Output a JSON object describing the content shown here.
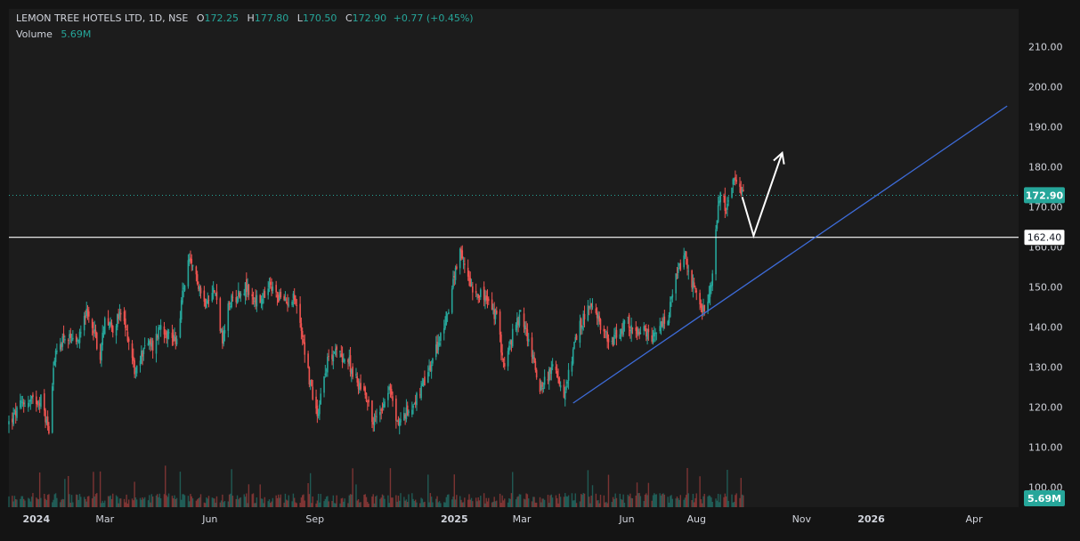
{
  "header": {
    "symbol": "LEMON TREE HOTELS LTD, 1D, NSE",
    "o_label": "O",
    "o_value": "172.25",
    "h_label": "H",
    "h_value": "177.80",
    "l_label": "L",
    "l_value": "170.50",
    "c_label": "C",
    "c_value": "172.90",
    "change": "+0.77 (+0.45%)",
    "volume_label": "Volume",
    "volume_value": "5.69M"
  },
  "colors": {
    "background": "#1c1c1c",
    "up": "#26a69a",
    "down": "#ef5350",
    "trendline": "#3d6bd8",
    "level_line": "#ffffff",
    "arrow": "#ffffff",
    "text": "#d1d4dc",
    "price_badge": "#26a69a"
  },
  "annotations": {
    "price_badge": "172.90",
    "level_label": "162.40",
    "volume_badge": "5.69M"
  },
  "chart_data": {
    "type": "candlestick",
    "title": "LEMON TREE HOTELS LTD, 1D, NSE",
    "ylim": [
      95,
      215
    ],
    "yticks": [
      "210.00",
      "200.00",
      "190.00",
      "180.00",
      "170.00",
      "160.00",
      "150.00",
      "140.00",
      "130.00",
      "120.00",
      "110.00",
      "100.00"
    ],
    "ytick_values": [
      210,
      200,
      190,
      180,
      170,
      160,
      150,
      140,
      130,
      120,
      110,
      100
    ],
    "xlim": [
      "2023-12-08",
      "2026-05-10"
    ],
    "xticks": [
      {
        "label": "2024",
        "date": "2024-01-01"
      },
      {
        "label": "Mar",
        "date": "2024-03-01"
      },
      {
        "label": "Jun",
        "date": "2024-06-01"
      },
      {
        "label": "Sep",
        "date": "2024-09-01"
      },
      {
        "label": "2025",
        "date": "2025-01-01"
      },
      {
        "label": "Mar",
        "date": "2025-03-01"
      },
      {
        "label": "Jun",
        "date": "2025-06-01"
      },
      {
        "label": "Aug",
        "date": "2025-08-01"
      },
      {
        "label": "Nov",
        "date": "2025-11-01"
      },
      {
        "label": "2026",
        "date": "2026-01-01"
      },
      {
        "label": "Apr",
        "date": "2026-04-01"
      }
    ],
    "last_close": 172.9,
    "horizontal_level": 162.4,
    "trendline": [
      {
        "date": "2025-04-15",
        "value": 121.0
      },
      {
        "date": "2026-04-30",
        "value": 195.2
      }
    ],
    "projection_path": [
      {
        "date": "2025-09-10",
        "value": 172.5
      },
      {
        "date": "2025-09-20",
        "value": 162.8
      },
      {
        "date": "2025-10-15",
        "value": 183.5
      }
    ],
    "price_path": [
      [
        "2023-12-08",
        116
      ],
      [
        "2023-12-20",
        121
      ],
      [
        "2024-01-05",
        122
      ],
      [
        "2024-01-12",
        114
      ],
      [
        "2024-01-16",
        131
      ],
      [
        "2024-01-25",
        138
      ],
      [
        "2024-02-05",
        135
      ],
      [
        "2024-02-12",
        144
      ],
      [
        "2024-02-20",
        140
      ],
      [
        "2024-02-26",
        132
      ],
      [
        "2024-03-01",
        143
      ],
      [
        "2024-03-08",
        140
      ],
      [
        "2024-03-15",
        143
      ],
      [
        "2024-03-22",
        137
      ],
      [
        "2024-03-28",
        128
      ],
      [
        "2024-04-05",
        136
      ],
      [
        "2024-04-12",
        135
      ],
      [
        "2024-04-19",
        141
      ],
      [
        "2024-04-26",
        138
      ],
      [
        "2024-05-03",
        137
      ],
      [
        "2024-05-08",
        148
      ],
      [
        "2024-05-13",
        156
      ],
      [
        "2024-05-20",
        153
      ],
      [
        "2024-05-27",
        146
      ],
      [
        "2024-06-03",
        150
      ],
      [
        "2024-06-07",
        147
      ],
      [
        "2024-06-12",
        136
      ],
      [
        "2024-06-18",
        146
      ],
      [
        "2024-06-25",
        148
      ],
      [
        "2024-07-02",
        150
      ],
      [
        "2024-07-09",
        147
      ],
      [
        "2024-07-16",
        146
      ],
      [
        "2024-07-23",
        150
      ],
      [
        "2024-07-30",
        148
      ],
      [
        "2024-08-06",
        146
      ],
      [
        "2024-08-13",
        148
      ],
      [
        "2024-08-20",
        140
      ],
      [
        "2024-08-27",
        127
      ],
      [
        "2024-09-03",
        118
      ],
      [
        "2024-09-10",
        130
      ],
      [
        "2024-09-17",
        134
      ],
      [
        "2024-09-24",
        133
      ],
      [
        "2024-10-01",
        131
      ],
      [
        "2024-10-08",
        126
      ],
      [
        "2024-10-15",
        124
      ],
      [
        "2024-10-22",
        116
      ],
      [
        "2024-10-29",
        120
      ],
      [
        "2024-11-05",
        125
      ],
      [
        "2024-11-12",
        116
      ],
      [
        "2024-11-19",
        118
      ],
      [
        "2024-11-26",
        121
      ],
      [
        "2024-12-03",
        124
      ],
      [
        "2024-12-10",
        129
      ],
      [
        "2024-12-17",
        135
      ],
      [
        "2024-12-24",
        141
      ],
      [
        "2024-12-31",
        151
      ],
      [
        "2025-01-06",
        158
      ],
      [
        "2025-01-13",
        153
      ],
      [
        "2025-01-17",
        150
      ],
      [
        "2025-01-24",
        148
      ],
      [
        "2025-01-31",
        146
      ],
      [
        "2025-02-07",
        142
      ],
      [
        "2025-02-14",
        130
      ],
      [
        "2025-02-21",
        138
      ],
      [
        "2025-02-28",
        143
      ],
      [
        "2025-03-04",
        140
      ],
      [
        "2025-03-10",
        133
      ],
      [
        "2025-03-17",
        125
      ],
      [
        "2025-03-24",
        128
      ],
      [
        "2025-03-31",
        130
      ],
      [
        "2025-04-07",
        121
      ],
      [
        "2025-04-14",
        133
      ],
      [
        "2025-04-21",
        140
      ],
      [
        "2025-04-28",
        145
      ],
      [
        "2025-05-05",
        143
      ],
      [
        "2025-05-12",
        139
      ],
      [
        "2025-05-19",
        136
      ],
      [
        "2025-05-26",
        139
      ],
      [
        "2025-06-02",
        141
      ],
      [
        "2025-06-09",
        138
      ],
      [
        "2025-06-16",
        139
      ],
      [
        "2025-06-23",
        136
      ],
      [
        "2025-06-30",
        140
      ],
      [
        "2025-07-07",
        142
      ],
      [
        "2025-07-14",
        152
      ],
      [
        "2025-07-21",
        158
      ],
      [
        "2025-07-28",
        151
      ],
      [
        "2025-08-04",
        146
      ],
      [
        "2025-08-08",
        143
      ],
      [
        "2025-08-14",
        150
      ],
      [
        "2025-08-18",
        165
      ],
      [
        "2025-08-21",
        173
      ],
      [
        "2025-08-27",
        170
      ],
      [
        "2025-09-02",
        176
      ],
      [
        "2025-09-08",
        173.5
      ],
      [
        "2025-09-11",
        172.9
      ]
    ],
    "volume_ylim": [
      0,
      12
    ]
  }
}
